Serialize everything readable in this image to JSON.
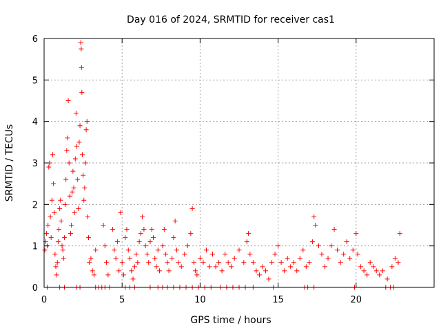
{
  "chart_data": {
    "type": "scatter",
    "title": "Day 016 of 2024, SRMTID for receiver cas1",
    "xlabel": "GPS time / hours",
    "ylabel": "SRMTID / TECUs",
    "xlim": [
      0,
      25
    ],
    "ylim": [
      0,
      6
    ],
    "xticks": [
      0,
      5,
      10,
      15,
      20
    ],
    "yticks": [
      0,
      1,
      2,
      3,
      4,
      5,
      6
    ],
    "grid": true,
    "marker": "plus",
    "color": "#ff0000",
    "series": [
      {
        "name": "SRMTID",
        "points": [
          [
            0.05,
            0.9
          ],
          [
            0.1,
            1.1
          ],
          [
            0.15,
            1.3
          ],
          [
            0.2,
            1.0
          ],
          [
            0.25,
            1.5
          ],
          [
            0.3,
            2.9
          ],
          [
            0.35,
            3.0
          ],
          [
            0.4,
            1.7
          ],
          [
            0.45,
            1.2
          ],
          [
            0.5,
            2.1
          ],
          [
            0.55,
            3.2
          ],
          [
            0.6,
            2.5
          ],
          [
            0.65,
            1.8
          ],
          [
            0.7,
            0.8
          ],
          [
            0.75,
            0.5
          ],
          [
            0.8,
            0.3
          ],
          [
            0.85,
            0.6
          ],
          [
            0.9,
            1.1
          ],
          [
            0.95,
            1.4
          ],
          [
            1.0,
            1.9
          ],
          [
            1.05,
            2.1
          ],
          [
            1.1,
            1.6
          ],
          [
            1.15,
            1.0
          ],
          [
            1.2,
            0.9
          ],
          [
            1.25,
            0.7
          ],
          [
            1.3,
            1.2
          ],
          [
            1.35,
            2.0
          ],
          [
            1.4,
            2.6
          ],
          [
            1.45,
            3.3
          ],
          [
            1.5,
            3.6
          ],
          [
            1.55,
            4.5
          ],
          [
            1.6,
            3.0
          ],
          [
            1.65,
            2.2
          ],
          [
            1.7,
            1.3
          ],
          [
            1.75,
            1.5
          ],
          [
            1.8,
            2.3
          ],
          [
            1.85,
            2.8
          ],
          [
            1.9,
            2.4
          ],
          [
            1.95,
            1.8
          ],
          [
            2.0,
            3.1
          ],
          [
            2.05,
            4.2
          ],
          [
            2.1,
            3.4
          ],
          [
            2.15,
            2.6
          ],
          [
            2.2,
            1.9
          ],
          [
            2.25,
            3.5
          ],
          [
            2.3,
            3.9
          ],
          [
            2.35,
            5.9
          ],
          [
            2.38,
            5.75
          ],
          [
            2.4,
            5.3
          ],
          [
            2.42,
            4.7
          ],
          [
            2.45,
            3.2
          ],
          [
            2.5,
            2.7
          ],
          [
            2.55,
            2.1
          ],
          [
            2.6,
            2.4
          ],
          [
            2.65,
            3.0
          ],
          [
            2.7,
            3.8
          ],
          [
            2.75,
            4.0
          ],
          [
            2.8,
            1.7
          ],
          [
            2.85,
            1.2
          ],
          [
            2.9,
            0.6
          ],
          [
            3.0,
            0.7
          ],
          [
            3.1,
            0.4
          ],
          [
            3.2,
            0.3
          ],
          [
            3.3,
            0.9
          ],
          [
            3.8,
            1.5
          ],
          [
            3.9,
            1.0
          ],
          [
            4.0,
            0.6
          ],
          [
            4.1,
            0.3
          ],
          [
            4.4,
            1.4
          ],
          [
            4.5,
            0.9
          ],
          [
            4.6,
            0.7
          ],
          [
            4.7,
            1.1
          ],
          [
            4.8,
            0.4
          ],
          [
            4.9,
            1.8
          ],
          [
            5.0,
            0.6
          ],
          [
            5.1,
            0.3
          ],
          [
            5.2,
            1.2
          ],
          [
            5.3,
            1.4
          ],
          [
            5.4,
            0.9
          ],
          [
            5.5,
            0.7
          ],
          [
            5.6,
            0.4
          ],
          [
            5.7,
            0.2
          ],
          [
            5.8,
            0.5
          ],
          [
            5.9,
            0.8
          ],
          [
            6.0,
            0.6
          ],
          [
            6.1,
            1.1
          ],
          [
            6.2,
            1.3
          ],
          [
            6.3,
            1.7
          ],
          [
            6.4,
            1.4
          ],
          [
            6.5,
            1.0
          ],
          [
            6.6,
            0.8
          ],
          [
            6.7,
            0.6
          ],
          [
            6.8,
            1.1
          ],
          [
            6.9,
            1.4
          ],
          [
            7.0,
            1.2
          ],
          [
            7.1,
            0.7
          ],
          [
            7.2,
            0.5
          ],
          [
            7.3,
            0.9
          ],
          [
            7.4,
            0.4
          ],
          [
            7.6,
            1.0
          ],
          [
            7.7,
            1.4
          ],
          [
            7.8,
            0.8
          ],
          [
            7.9,
            0.6
          ],
          [
            8.0,
            0.4
          ],
          [
            8.2,
            0.7
          ],
          [
            8.3,
            1.2
          ],
          [
            8.4,
            1.6
          ],
          [
            8.5,
            0.9
          ],
          [
            8.6,
            0.6
          ],
          [
            8.8,
            0.5
          ],
          [
            9.0,
            0.8
          ],
          [
            9.2,
            1.0
          ],
          [
            9.4,
            1.3
          ],
          [
            9.5,
            1.9
          ],
          [
            9.6,
            0.6
          ],
          [
            9.7,
            0.4
          ],
          [
            9.8,
            0.3
          ],
          [
            10.0,
            0.7
          ],
          [
            10.2,
            0.6
          ],
          [
            10.4,
            0.9
          ],
          [
            10.6,
            0.5
          ],
          [
            10.8,
            0.8
          ],
          [
            11.0,
            0.5
          ],
          [
            11.2,
            0.6
          ],
          [
            11.4,
            0.4
          ],
          [
            11.6,
            0.8
          ],
          [
            11.8,
            0.6
          ],
          [
            12.0,
            0.5
          ],
          [
            12.2,
            0.7
          ],
          [
            12.5,
            0.9
          ],
          [
            12.8,
            0.6
          ],
          [
            13.0,
            1.1
          ],
          [
            13.1,
            1.3
          ],
          [
            13.2,
            0.8
          ],
          [
            13.4,
            0.6
          ],
          [
            13.6,
            0.4
          ],
          [
            13.8,
            0.3
          ],
          [
            14.0,
            0.5
          ],
          [
            14.2,
            0.4
          ],
          [
            14.4,
            0.2
          ],
          [
            14.6,
            0.6
          ],
          [
            14.8,
            0.8
          ],
          [
            15.0,
            1.0
          ],
          [
            15.2,
            0.6
          ],
          [
            15.4,
            0.4
          ],
          [
            15.6,
            0.7
          ],
          [
            15.8,
            0.5
          ],
          [
            16.0,
            0.6
          ],
          [
            16.2,
            0.4
          ],
          [
            16.4,
            0.7
          ],
          [
            16.6,
            0.9
          ],
          [
            16.8,
            0.5
          ],
          [
            17.0,
            0.6
          ],
          [
            17.2,
            1.1
          ],
          [
            17.3,
            1.7
          ],
          [
            17.4,
            1.5
          ],
          [
            17.6,
            1.0
          ],
          [
            17.8,
            0.8
          ],
          [
            18.0,
            0.5
          ],
          [
            18.2,
            0.7
          ],
          [
            18.4,
            1.0
          ],
          [
            18.6,
            1.4
          ],
          [
            18.8,
            0.9
          ],
          [
            19.0,
            0.6
          ],
          [
            19.2,
            0.8
          ],
          [
            19.4,
            1.1
          ],
          [
            19.6,
            0.7
          ],
          [
            19.8,
            0.9
          ],
          [
            20.0,
            1.3
          ],
          [
            20.1,
            0.8
          ],
          [
            20.3,
            0.5
          ],
          [
            20.5,
            0.4
          ],
          [
            20.7,
            0.3
          ],
          [
            20.9,
            0.6
          ],
          [
            21.1,
            0.5
          ],
          [
            21.3,
            0.4
          ],
          [
            21.5,
            0.3
          ],
          [
            21.7,
            0.4
          ],
          [
            22.0,
            0.2
          ],
          [
            22.3,
            0.5
          ],
          [
            22.5,
            0.7
          ],
          [
            22.7,
            0.6
          ],
          [
            22.8,
            1.3
          ]
        ]
      }
    ],
    "zero_values_x": [
      0.2,
      1.0,
      1.3,
      2.1,
      2.3,
      3.3,
      3.5,
      3.7,
      3.9,
      4.2,
      5.2,
      5.5,
      5.8,
      6.8,
      7.3,
      7.6,
      7.9,
      8.3,
      8.7,
      9.1,
      9.5,
      9.9,
      10.3,
      10.7,
      11.3,
      11.7,
      12.1,
      12.5,
      12.9,
      13.4,
      14.7,
      16.7,
      16.9,
      17.3,
      19.9,
      21.9,
      22.2,
      22.4
    ]
  }
}
